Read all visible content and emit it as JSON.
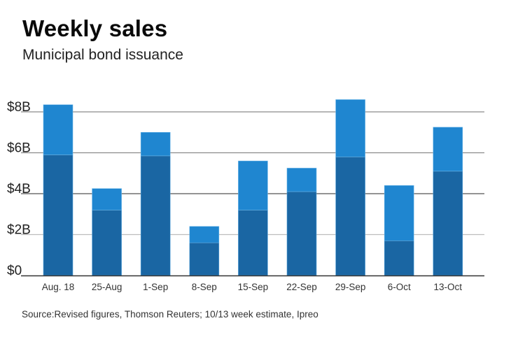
{
  "header": {
    "title": "Weekly sales",
    "subtitle": "Municipal bond issuance"
  },
  "footer": {
    "source": "Source:Revised figures, Thomson Reuters; 10/13 week estimate, Ipreo"
  },
  "colors": {
    "lower_segment": "#1a66a3",
    "upper_segment": "#1f86d0",
    "gridline": "#8a8a8a",
    "axis": "#333333"
  },
  "chart_data": {
    "type": "bar",
    "stacked": true,
    "title": "Weekly sales",
    "subtitle": "Municipal bond issuance",
    "xlabel": "",
    "ylabel": "",
    "unit": "$B",
    "ylim": [
      0,
      8
    ],
    "yticks": [
      0,
      2,
      4,
      6,
      8
    ],
    "ytick_labels": [
      "$0",
      "$2B",
      "$4B",
      "$6B",
      "$8B"
    ],
    "grid": true,
    "legend": "none",
    "categories": [
      "Aug. 18",
      "25-Aug",
      "1-Sep",
      "8-Sep",
      "15-Sep",
      "22-Sep",
      "29-Sep",
      "6-Oct",
      "13-Oct"
    ],
    "series": [
      {
        "name": "lower (dark blue)",
        "values": [
          5.9,
          3.2,
          5.85,
          1.6,
          3.2,
          4.1,
          5.8,
          1.7,
          5.1
        ]
      },
      {
        "name": "upper (light blue)",
        "values": [
          2.45,
          1.05,
          1.15,
          0.8,
          2.4,
          1.15,
          2.8,
          2.7,
          2.15
        ]
      }
    ],
    "totals": [
      8.35,
      4.25,
      7.0,
      2.4,
      5.6,
      5.25,
      8.6,
      4.4,
      7.25
    ]
  }
}
